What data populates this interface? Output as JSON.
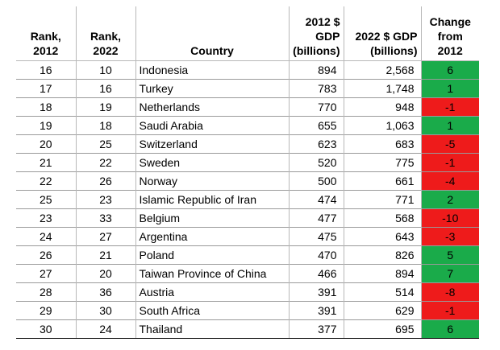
{
  "headers": {
    "rank2012": [
      "Rank,",
      "2012"
    ],
    "rank2022": [
      "Rank,",
      "2022"
    ],
    "country": "Country",
    "gdp2012": [
      "2012 $",
      "GDP",
      "(billions)"
    ],
    "gdp2022": [
      "2022 $ GDP",
      "(billions)"
    ],
    "change": [
      "Change",
      "from",
      "2012"
    ]
  },
  "colors": {
    "positive": "#1aab4a",
    "negative": "#ee1b1b"
  },
  "rows": [
    {
      "rank2012": "16",
      "rank2022": "10",
      "country": "Indonesia",
      "gdp2012": "894",
      "gdp2022": "2,568",
      "change": "6",
      "sign": "positive"
    },
    {
      "rank2012": "17",
      "rank2022": "16",
      "country": "Turkey",
      "gdp2012": "783",
      "gdp2022": "1,748",
      "change": "1",
      "sign": "positive"
    },
    {
      "rank2012": "18",
      "rank2022": "19",
      "country": "Netherlands",
      "gdp2012": "770",
      "gdp2022": "948",
      "change": "-1",
      "sign": "negative"
    },
    {
      "rank2012": "19",
      "rank2022": "18",
      "country": "Saudi Arabia",
      "gdp2012": "655",
      "gdp2022": "1,063",
      "change": "1",
      "sign": "positive"
    },
    {
      "rank2012": "20",
      "rank2022": "25",
      "country": "Switzerland",
      "gdp2012": "623",
      "gdp2022": "683",
      "change": "-5",
      "sign": "negative"
    },
    {
      "rank2012": "21",
      "rank2022": "22",
      "country": "Sweden",
      "gdp2012": "520",
      "gdp2022": "775",
      "change": "-1",
      "sign": "negative"
    },
    {
      "rank2012": "22",
      "rank2022": "26",
      "country": "Norway",
      "gdp2012": "500",
      "gdp2022": "661",
      "change": "-4",
      "sign": "negative"
    },
    {
      "rank2012": "25",
      "rank2022": "23",
      "country": "Islamic Republic of Iran",
      "gdp2012": "474",
      "gdp2022": "771",
      "change": "2",
      "sign": "positive"
    },
    {
      "rank2012": "23",
      "rank2022": "33",
      "country": "Belgium",
      "gdp2012": "477",
      "gdp2022": "568",
      "change": "-10",
      "sign": "negative"
    },
    {
      "rank2012": "24",
      "rank2022": "27",
      "country": "Argentina",
      "gdp2012": "475",
      "gdp2022": "643",
      "change": "-3",
      "sign": "negative"
    },
    {
      "rank2012": "26",
      "rank2022": "21",
      "country": "Poland",
      "gdp2012": "470",
      "gdp2022": "826",
      "change": "5",
      "sign": "positive"
    },
    {
      "rank2012": "27",
      "rank2022": "20",
      "country": "Taiwan Province of China",
      "gdp2012": "466",
      "gdp2022": "894",
      "change": "7",
      "sign": "positive"
    },
    {
      "rank2012": "28",
      "rank2022": "36",
      "country": "Austria",
      "gdp2012": "391",
      "gdp2022": "514",
      "change": "-8",
      "sign": "negative"
    },
    {
      "rank2012": "29",
      "rank2022": "30",
      "country": "South Africa",
      "gdp2012": "391",
      "gdp2022": "629",
      "change": "-1",
      "sign": "negative"
    },
    {
      "rank2012": "30",
      "rank2022": "24",
      "country": "Thailand",
      "gdp2012": "377",
      "gdp2022": "695",
      "change": "6",
      "sign": "positive"
    }
  ]
}
